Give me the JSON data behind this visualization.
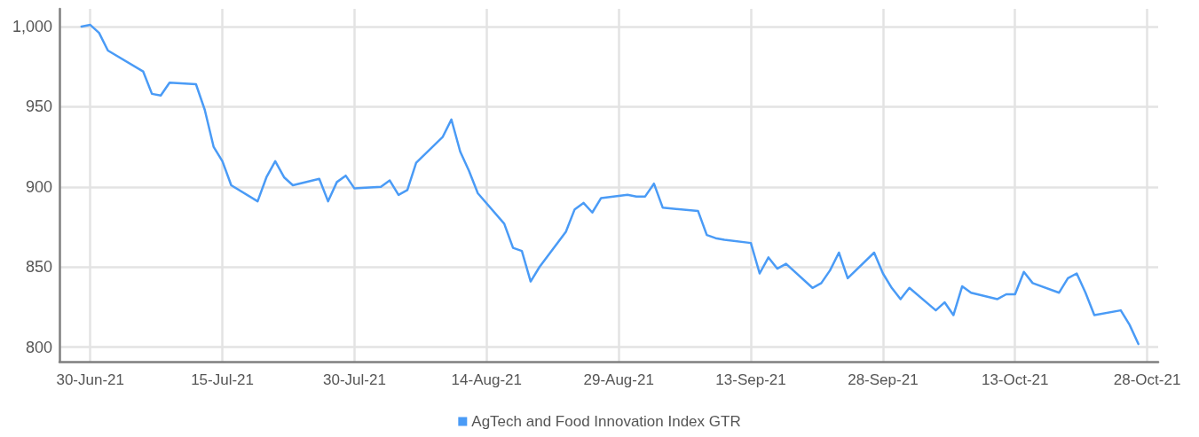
{
  "chart_data": {
    "type": "line",
    "x": [
      "2021-06-29",
      "2021-06-30",
      "2021-07-01",
      "2021-07-02",
      "2021-07-06",
      "2021-07-07",
      "2021-07-08",
      "2021-07-09",
      "2021-07-12",
      "2021-07-13",
      "2021-07-14",
      "2021-07-15",
      "2021-07-16",
      "2021-07-19",
      "2021-07-20",
      "2021-07-21",
      "2021-07-22",
      "2021-07-23",
      "2021-07-26",
      "2021-07-27",
      "2021-07-28",
      "2021-07-29",
      "2021-07-30",
      "2021-08-02",
      "2021-08-03",
      "2021-08-04",
      "2021-08-05",
      "2021-08-06",
      "2021-08-09",
      "2021-08-10",
      "2021-08-11",
      "2021-08-12",
      "2021-08-13",
      "2021-08-16",
      "2021-08-17",
      "2021-08-18",
      "2021-08-19",
      "2021-08-20",
      "2021-08-23",
      "2021-08-24",
      "2021-08-25",
      "2021-08-26",
      "2021-08-27",
      "2021-08-30",
      "2021-08-31",
      "2021-09-01",
      "2021-09-02",
      "2021-09-03",
      "2021-09-07",
      "2021-09-08",
      "2021-09-09",
      "2021-09-10",
      "2021-09-13",
      "2021-09-14",
      "2021-09-15",
      "2021-09-16",
      "2021-09-17",
      "2021-09-20",
      "2021-09-21",
      "2021-09-22",
      "2021-09-23",
      "2021-09-24",
      "2021-09-27",
      "2021-09-28",
      "2021-09-29",
      "2021-09-30",
      "2021-10-01",
      "2021-10-04",
      "2021-10-05",
      "2021-10-06",
      "2021-10-07",
      "2021-10-08",
      "2021-10-11",
      "2021-10-12",
      "2021-10-13",
      "2021-10-14",
      "2021-10-15",
      "2021-10-18",
      "2021-10-19",
      "2021-10-20",
      "2021-10-21",
      "2021-10-22",
      "2021-10-25",
      "2021-10-26",
      "2021-10-27"
    ],
    "series": [
      {
        "name": "AgTech and Food Innovation Index GTR",
        "color": "#4a9bf6",
        "values": [
          1000,
          1001,
          996,
          985,
          972,
          958,
          957,
          965,
          964,
          948,
          925,
          916,
          901,
          891,
          906,
          916,
          906,
          901,
          905,
          891,
          903,
          907,
          899,
          900,
          904,
          895,
          898,
          915,
          931,
          942,
          922,
          910,
          896,
          877,
          862,
          860,
          841,
          850,
          872,
          886,
          890,
          884,
          893,
          895,
          894,
          894,
          902,
          887,
          885,
          870,
          868,
          867,
          865,
          846,
          856,
          849,
          852,
          837,
          840,
          848,
          859,
          843,
          859,
          846,
          837,
          830,
          837,
          823,
          828,
          820,
          838,
          834,
          830,
          833,
          833,
          847,
          840,
          834,
          843,
          846,
          834,
          820,
          823,
          814,
          802
        ]
      }
    ],
    "xlim": [
      "2021-06-26T12:00",
      "2021-10-29T06:00"
    ],
    "ylim": [
      791,
      1011
    ],
    "xticks": [
      {
        "value": "2021-06-30",
        "label": "30-Jun-21"
      },
      {
        "value": "2021-07-15",
        "label": "15-Jul-21"
      },
      {
        "value": "2021-07-30",
        "label": "30-Jul-21"
      },
      {
        "value": "2021-08-14",
        "label": "14-Aug-21"
      },
      {
        "value": "2021-08-29",
        "label": "29-Aug-21"
      },
      {
        "value": "2021-09-13",
        "label": "13-Sep-21"
      },
      {
        "value": "2021-09-28",
        "label": "28-Sep-21"
      },
      {
        "value": "2021-10-13",
        "label": "13-Oct-21"
      },
      {
        "value": "2021-10-28",
        "label": "28-Oct-21"
      }
    ],
    "yticks": [
      800,
      850,
      900,
      950,
      {
        "value": 1000,
        "label": "1,000"
      }
    ],
    "grid": true,
    "legend": "bottom",
    "marker": "none",
    "line_style": "solid"
  }
}
